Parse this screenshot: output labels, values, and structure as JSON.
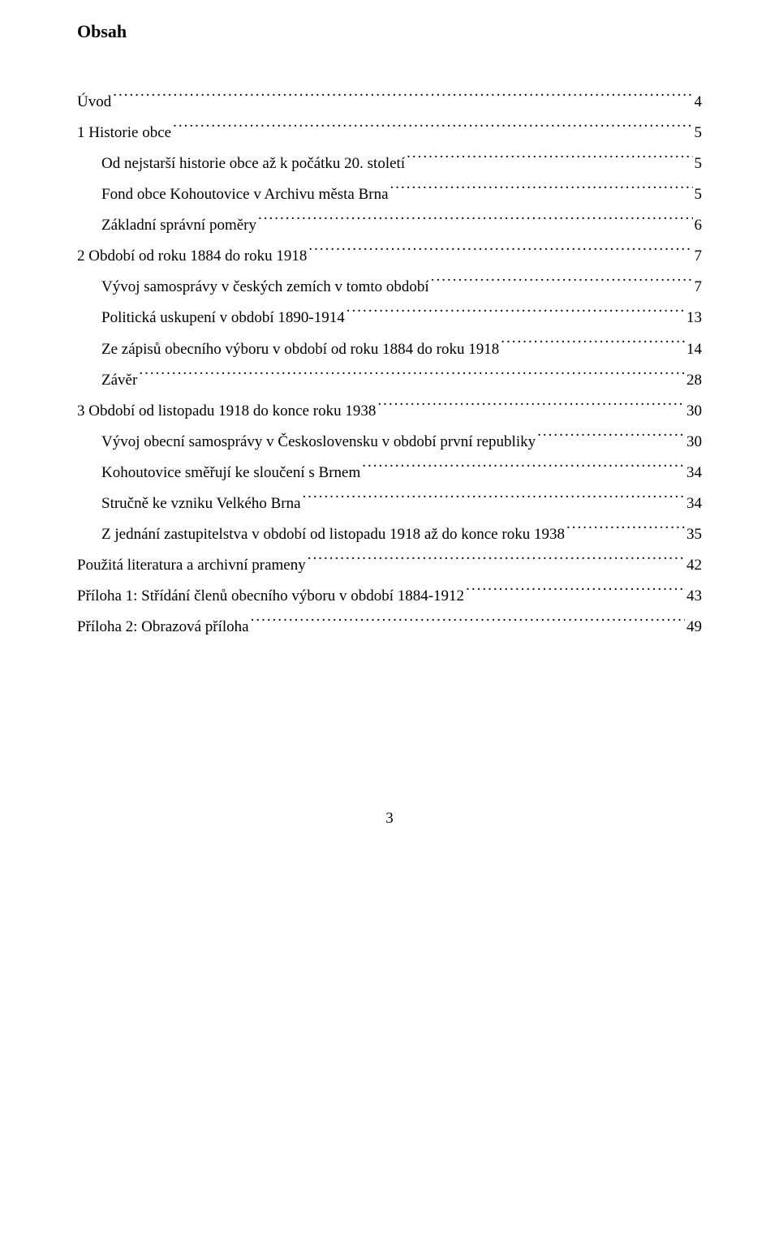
{
  "heading": "Obsah",
  "page_number": "3",
  "entries": [
    {
      "label": "Úvod",
      "page": "4",
      "indent": 0
    },
    {
      "label": "1 Historie obce",
      "page": "5",
      "indent": 0
    },
    {
      "label": "Od nejstarší historie obce až k počátku 20. století",
      "page": "5",
      "indent": 1
    },
    {
      "label": "Fond obce Kohoutovice v Archivu města Brna",
      "page": "5",
      "indent": 1
    },
    {
      "label": "Základní správní poměry",
      "page": "6",
      "indent": 1
    },
    {
      "label": "2 Období od roku 1884 do roku 1918",
      "page": "7",
      "indent": 0
    },
    {
      "label": "Vývoj samosprávy v českých zemích v tomto období",
      "page": "7",
      "indent": 1
    },
    {
      "label": "Politická uskupení v období 1890-1914",
      "page": "13",
      "indent": 1
    },
    {
      "label": "Ze zápisů obecního výboru v období od roku 1884 do roku 1918",
      "page": "14",
      "indent": 1
    },
    {
      "label": "Závěr",
      "page": "28",
      "indent": 1
    },
    {
      "label": "3 Období od listopadu 1918 do konce roku 1938",
      "page": "30",
      "indent": 0
    },
    {
      "label": "Vývoj obecní samosprávy v Československu v období první republiky",
      "page": "30",
      "indent": 1
    },
    {
      "label": "Kohoutovice směřují ke sloučení s Brnem",
      "page": "34",
      "indent": 1
    },
    {
      "label": "Stručně ke vzniku Velkého Brna",
      "page": "34",
      "indent": 1
    },
    {
      "label": "Z jednání zastupitelstva v období od listopadu 1918 až do konce roku 1938",
      "page": "35",
      "indent": 1
    },
    {
      "label": "Použitá literatura a archivní prameny",
      "page": "42",
      "indent": 0
    },
    {
      "label": "Příloha 1: Střídání členů obecního výboru v období 1884-1912",
      "page": "43",
      "indent": 0
    },
    {
      "label": "Příloha 2: Obrazová příloha",
      "page": "49",
      "indent": 0
    }
  ]
}
